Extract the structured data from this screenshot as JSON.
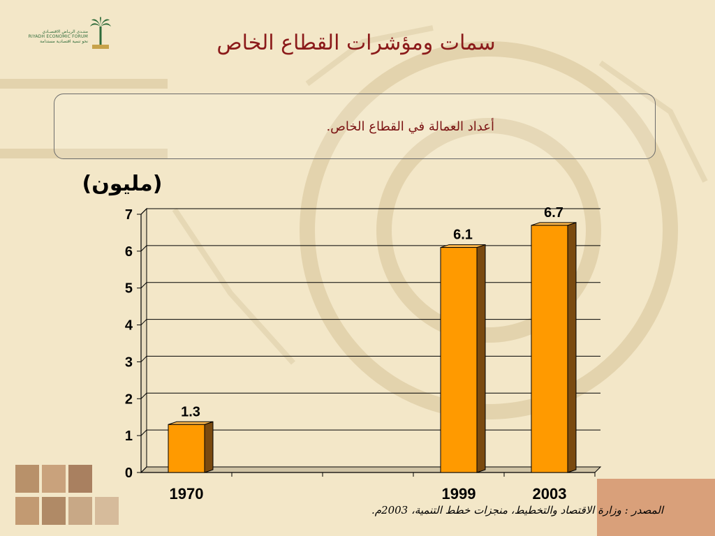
{
  "slide": {
    "title": "سمات ومؤشرات القطاع الخاص",
    "subtitle": "أعداد العمالة في القطاع الخاص.",
    "unit_label": "(مليون)",
    "source": "المصدر : وزارة الاقتصاد والتخطيط، منجزات خطط التنمية، 2003م."
  },
  "logo": {
    "arabic": "منتـدى الريـاض الاقتصـادي",
    "english": "RIYADH ECONOMIC FORUM",
    "tagline": "نحو تنمية اقتصادية مستدامة"
  },
  "colors": {
    "title": "#8b1a1a",
    "bar_front": "#ff9a00",
    "bar_side": "#7a4a10",
    "bar_top": "#ffb84a",
    "grid": "#000000"
  },
  "chart_data": {
    "type": "bar",
    "categories": [
      "1970",
      "",
      "",
      "1999",
      "2003"
    ],
    "values": [
      1.3,
      null,
      null,
      6.1,
      6.7
    ],
    "data_labels": [
      "1.3",
      "",
      "",
      "6.1",
      "6.7"
    ],
    "ylabel": "(مليون)",
    "ylim": [
      0,
      7
    ],
    "yticks": [
      0,
      1,
      2,
      3,
      4,
      5,
      6,
      7
    ],
    "grid": true,
    "legend": "none"
  }
}
